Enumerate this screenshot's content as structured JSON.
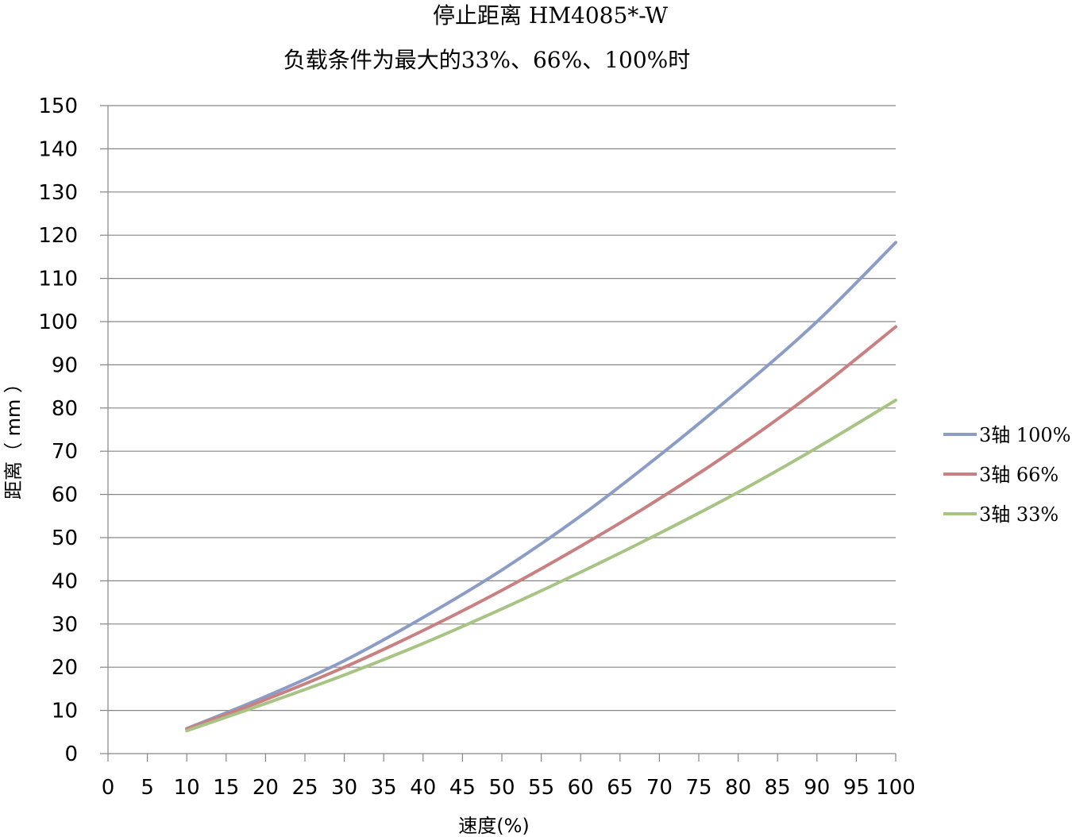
{
  "chart_data": {
    "type": "line",
    "title": "停止距离 HM4085*-W",
    "subtitle": "负载条件为最大的33%、66%、100%时",
    "xlabel": "速度(%)",
    "ylabel": "距离（ mm ）",
    "xlim": [
      0,
      100
    ],
    "ylim": [
      0,
      150
    ],
    "x_ticks": [
      "0",
      "5",
      "10",
      "15",
      "20",
      "25",
      "30",
      "35",
      "40",
      "45",
      "50",
      "55",
      "60",
      "65",
      "70",
      "75",
      "80",
      "85",
      "90",
      "95",
      "100"
    ],
    "y_ticks": [
      "0",
      "10",
      "20",
      "30",
      "40",
      "50",
      "60",
      "70",
      "80",
      "90",
      "100",
      "110",
      "120",
      "130",
      "140",
      "150"
    ],
    "y_gridlines": true,
    "legend_position": "right",
    "x": [
      10,
      20,
      30,
      40,
      50,
      60,
      70,
      80,
      90,
      100
    ],
    "series": [
      {
        "name": "3轴 100%",
        "color": "#8B9DC6",
        "values": [
          5.8,
          13.2,
          21.5,
          31.5,
          42.5,
          55.0,
          69.0,
          84.0,
          100.0,
          118.3
        ]
      },
      {
        "name": "3轴 66%",
        "color": "#C88080",
        "values": [
          5.7,
          12.5,
          20.0,
          28.5,
          37.8,
          48.0,
          59.0,
          71.0,
          84.2,
          98.8
        ]
      },
      {
        "name": "3轴 33%",
        "color": "#A8C485",
        "values": [
          5.3,
          11.6,
          18.2,
          25.5,
          33.5,
          42.0,
          51.0,
          60.5,
          70.8,
          81.8
        ]
      }
    ]
  }
}
